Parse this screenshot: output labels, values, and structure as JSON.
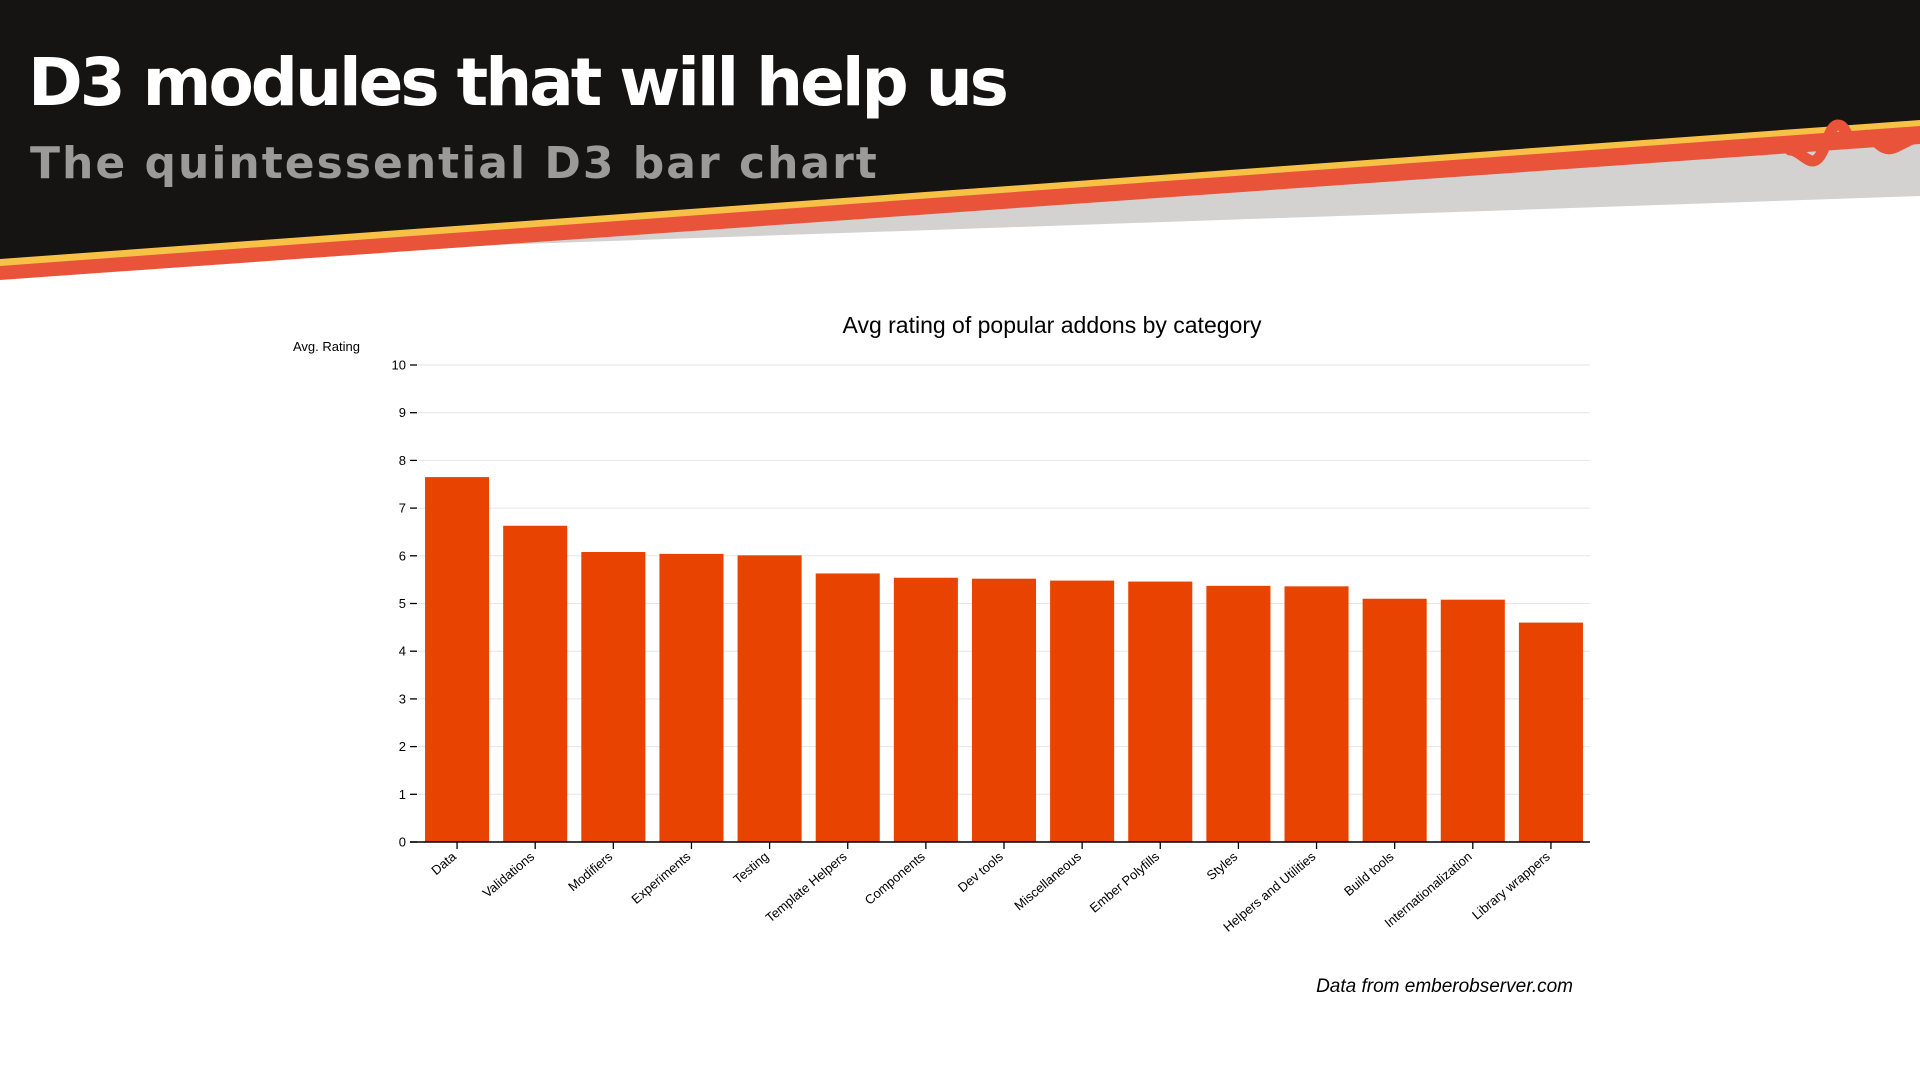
{
  "slide": {
    "title": "D3 modules that will help us",
    "subtitle": "The quintessential D3 bar chart",
    "source": "Data from emberobserver.com"
  },
  "colors": {
    "header_bg": "#161413",
    "stripe_yellow": "#f7c147",
    "stripe_red": "#e8533a",
    "stripe_gray": "#d4d2d0",
    "bar": "#e84400",
    "grid": "#e6e6e6"
  },
  "chart_data": {
    "type": "bar",
    "title": "Avg rating of popular addons by category",
    "ylabel": "Avg. Rating",
    "xlabel": "",
    "ylim": [
      0,
      10
    ],
    "yticks": [
      "0",
      "1",
      "2",
      "3",
      "4",
      "5",
      "6",
      "7",
      "8",
      "9",
      "10"
    ],
    "grid": true,
    "categories": [
      "Data",
      "Validations",
      "Modifiers",
      "Experiments",
      "Testing",
      "Template Helpers",
      "Components",
      "Dev tools",
      "Miscellaneous",
      "Ember Polyfills",
      "Styles",
      "Helpers and Utilities",
      "Build tools",
      "Internationalization",
      "Library wrappers"
    ],
    "values": [
      7.65,
      6.63,
      6.08,
      6.04,
      6.01,
      5.63,
      5.54,
      5.52,
      5.48,
      5.46,
      5.37,
      5.36,
      5.1,
      5.08,
      4.6
    ]
  }
}
